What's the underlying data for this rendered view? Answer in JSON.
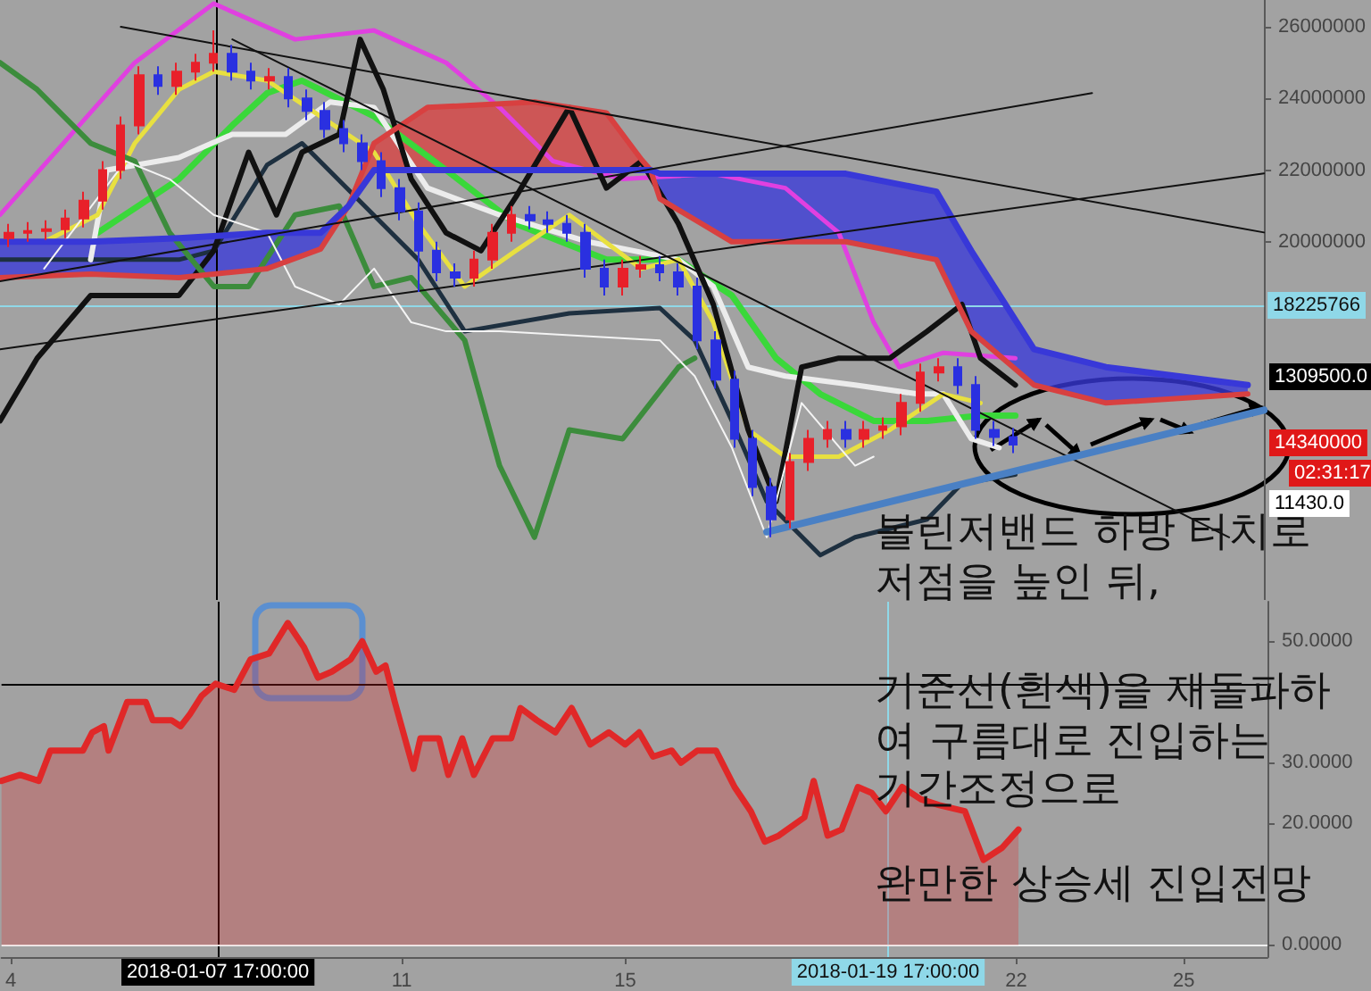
{
  "chart_data": [
    {
      "type": "candlestick",
      "x": [
        "2018-01-04T00:00",
        "2018-01-04T08:00",
        "2018-01-04T16:00",
        "2018-01-05T00:00",
        "2018-01-05T08:00",
        "2018-01-05T16:00",
        "2018-01-06T00:00",
        "2018-01-06T08:00",
        "2018-01-06T16:00",
        "2018-01-07T00:00",
        "2018-01-07T08:00",
        "2018-01-07T16:00",
        "2018-01-08T00:00",
        "2018-01-08T08:00",
        "2018-01-08T16:00",
        "2018-01-09T00:00",
        "2018-01-09T08:00",
        "2018-01-09T16:00",
        "2018-01-10T00:00",
        "2018-01-10T08:00",
        "2018-01-10T16:00",
        "2018-01-11T00:00",
        "2018-01-11T08:00",
        "2018-01-11T16:00",
        "2018-01-12T00:00",
        "2018-01-12T08:00",
        "2018-01-12T16:00",
        "2018-01-13T00:00",
        "2018-01-13T08:00",
        "2018-01-13T16:00",
        "2018-01-14T00:00",
        "2018-01-14T08:00",
        "2018-01-14T16:00",
        "2018-01-15T00:00",
        "2018-01-15T08:00",
        "2018-01-15T16:00",
        "2018-01-16T00:00",
        "2018-01-16T08:00",
        "2018-01-16T16:00",
        "2018-01-17T00:00",
        "2018-01-17T08:00",
        "2018-01-17T16:00",
        "2018-01-18T00:00",
        "2018-01-18T08:00",
        "2018-01-18T16:00",
        "2018-01-19T00:00",
        "2018-01-19T08:00",
        "2018-01-19T16:00",
        "2018-01-20T00:00",
        "2018-01-20T08:00",
        "2018-01-20T16:00",
        "2018-01-21T00:00",
        "2018-01-21T08:00",
        "2018-01-21T16:00",
        "2018-01-22T00:00"
      ],
      "ohlc": [
        [
          20100000,
          20500000,
          19850000,
          20250000
        ],
        [
          20250000,
          20550000,
          20000000,
          20300000
        ],
        [
          20300000,
          20600000,
          20050000,
          20350000
        ],
        [
          20350000,
          20900000,
          20100000,
          20650000
        ],
        [
          20650000,
          21400000,
          20400000,
          21150000
        ],
        [
          21150000,
          22250000,
          20900000,
          22000000
        ],
        [
          22000000,
          23500000,
          21750000,
          23250000
        ],
        [
          23250000,
          24900000,
          23000000,
          24650000
        ],
        [
          24650000,
          24900000,
          24100000,
          24350000
        ],
        [
          24350000,
          25000000,
          24100000,
          24750000
        ],
        [
          24750000,
          25250000,
          24500000,
          25000000
        ],
        [
          25000000,
          25900000,
          24750000,
          25250000
        ],
        [
          25250000,
          25500000,
          24500000,
          24750000
        ],
        [
          24750000,
          25000000,
          24250000,
          24500000
        ],
        [
          24500000,
          24850000,
          24250000,
          24600000
        ],
        [
          24600000,
          24850000,
          23750000,
          24000000
        ],
        [
          24000000,
          24250000,
          23400000,
          23650000
        ],
        [
          23650000,
          23900000,
          22900000,
          23150000
        ],
        [
          23150000,
          23400000,
          22500000,
          22750000
        ],
        [
          22750000,
          23000000,
          22000000,
          22250000
        ],
        [
          22250000,
          22500000,
          21250000,
          21500000
        ],
        [
          21500000,
          21750000,
          20600000,
          20850000
        ],
        [
          20850000,
          21100000,
          18600000,
          19750000
        ],
        [
          19750000,
          20000000,
          18900000,
          19150000
        ],
        [
          19150000,
          19400000,
          18750000,
          19000000
        ],
        [
          19000000,
          19750000,
          18750000,
          19500000
        ],
        [
          19500000,
          20500000,
          19250000,
          20250000
        ],
        [
          20250000,
          21000000,
          20000000,
          20750000
        ],
        [
          20750000,
          21000000,
          20350000,
          20600000
        ],
        [
          20600000,
          20850000,
          20250000,
          20500000
        ],
        [
          20500000,
          20750000,
          20000000,
          20250000
        ],
        [
          20250000,
          20500000,
          19000000,
          19250000
        ],
        [
          19250000,
          19500000,
          18500000,
          18750000
        ],
        [
          18750000,
          19500000,
          18500000,
          19250000
        ],
        [
          19250000,
          19600000,
          19000000,
          19350000
        ],
        [
          19350000,
          19600000,
          18900000,
          19150000
        ],
        [
          19150000,
          19400000,
          18500000,
          18750000
        ],
        [
          18750000,
          19000000,
          17000000,
          17250000
        ],
        [
          17250000,
          17500000,
          15900000,
          16150000
        ],
        [
          16150000,
          16400000,
          14250000,
          14500000
        ],
        [
          14500000,
          14750000,
          12900000,
          13150000
        ],
        [
          13150000,
          13400000,
          11750000,
          12250000
        ],
        [
          12250000,
          14100000,
          12000000,
          13850000
        ],
        [
          13850000,
          14750000,
          13600000,
          14500000
        ],
        [
          14500000,
          15000000,
          14250000,
          14750000
        ],
        [
          14750000,
          15000000,
          14250000,
          14500000
        ],
        [
          14500000,
          15000000,
          14250000,
          14750000
        ],
        [
          14750000,
          15100000,
          14500000,
          14850000
        ],
        [
          14850000,
          15750000,
          14600000,
          15500000
        ],
        [
          15500000,
          16600000,
          15250000,
          16350000
        ],
        [
          16350000,
          16750000,
          16100000,
          16500000
        ],
        [
          16500000,
          16750000,
          15750000,
          16000000
        ],
        [
          16000000,
          16250000,
          14500000,
          14750000
        ],
        [
          14750000,
          15000000,
          14300000,
          14550000
        ],
        [
          14550000,
          14800000,
          14100000,
          14340000
        ]
      ],
      "colors": [
        "#e8202a",
        "#e8202a",
        "#e8202a",
        "#e8202a",
        "#e8202a",
        "#e8202a",
        "#e8202a",
        "#e8202a",
        "#2a30e0",
        "#e8202a",
        "#e8202a",
        "#e8202a",
        "#2a30e0",
        "#2a30e0",
        "#e8202a",
        "#2a30e0",
        "#2a30e0",
        "#2a30e0",
        "#2a30e0",
        "#2a30e0",
        "#2a30e0",
        "#2a30e0",
        "#2a30e0",
        "#2a30e0",
        "#2a30e0",
        "#e8202a",
        "#e8202a",
        "#e8202a",
        "#2a30e0",
        "#2a30e0",
        "#2a30e0",
        "#2a30e0",
        "#2a30e0",
        "#e8202a",
        "#e8202a",
        "#2a30e0",
        "#2a30e0",
        "#2a30e0",
        "#2a30e0",
        "#2a30e0",
        "#2a30e0",
        "#2a30e0",
        "#e8202a",
        "#e8202a",
        "#e8202a",
        "#2a30e0",
        "#e8202a",
        "#e8202a",
        "#e8202a",
        "#e8202a",
        "#e8202a",
        "#2a30e0",
        "#2a30e0",
        "#2a30e0",
        "#2a30e0"
      ],
      "series": [
        {
          "type": "line",
          "color": "#e040e0",
          "x": [
            "2018-01-03T20:00",
            "2018-01-06T06:00",
            "2018-01-07T16:00",
            "2018-01-09T03:00",
            "2018-01-10T13:00",
            "2018-01-11T20:00",
            "2018-01-12T19:00",
            "2018-01-13T18:00",
            "2018-01-15T00:00",
            "2018-01-16T15:00",
            "2018-01-17T22:00",
            "2018-01-18T21:00",
            "2018-01-19T12:00",
            "2018-01-19T23:00",
            "2018-01-20T18:00",
            "2018-01-22T01:00"
          ],
          "values": [
            20750000,
            25000000,
            26650000,
            25650000,
            25900000,
            25000000,
            23750000,
            22250000,
            21750000,
            21900000,
            21500000,
            20250000,
            17750000,
            16500000,
            16900000,
            16750000
          ]
        },
        {
          "type": "line",
          "color": "#1e3040",
          "x": [
            "2018-01-03T20:00",
            "2018-01-05T11:00",
            "2018-01-07T01:00",
            "2018-01-07T16:00",
            "2018-01-08T15:00",
            "2018-01-09T06:00",
            "2018-01-11T08:00",
            "2018-01-12T04:00",
            "2018-01-14T01:00",
            "2018-01-15T16:00",
            "2018-01-16T07:00",
            "2018-01-16T23:00",
            "2018-01-17T14:00",
            "2018-01-18T13:00",
            "2018-01-19T04:00",
            "2018-01-20T11:00",
            "2018-01-21T02:00",
            "2018-01-22T01:00"
          ],
          "values": [
            19500000,
            19500000,
            19500000,
            19750000,
            22150000,
            22750000,
            19500000,
            17500000,
            18000000,
            18150000,
            17250000,
            15000000,
            12750000,
            11250000,
            11750000,
            12250000,
            13250000,
            13500000
          ]
        },
        {
          "type": "line",
          "color": "#3ad83a",
          "x": [
            "2018-01-05T14:00",
            "2018-01-07T01:00",
            "2018-01-08T00:00",
            "2018-01-08T15:00",
            "2018-01-09T06:00",
            "2018-01-10T13:00",
            "2018-01-11T20:00",
            "2018-01-13T02:00",
            "2018-01-14T17:00",
            "2018-01-16T00:00",
            "2018-01-16T23:00",
            "2018-01-17T18:00",
            "2018-01-18T13:00",
            "2018-01-19T12:00",
            "2018-01-20T11:00",
            "2018-01-21T10:00",
            "2018-01-22T01:00"
          ],
          "values": [
            20250000,
            21750000,
            23250000,
            24150000,
            24500000,
            23500000,
            22000000,
            20500000,
            19500000,
            19500000,
            18500000,
            16750000,
            15750000,
            15000000,
            15000000,
            15150000,
            15150000
          ]
        },
        {
          "type": "line",
          "color": "#ececec",
          "x": [
            "2018-01-05T11:00",
            "2018-01-05T18:00",
            "2018-01-07T01:00",
            "2018-01-08T00:00",
            "2018-01-08T23:00",
            "2018-01-09T18:00",
            "2018-01-10T13:00",
            "2018-01-11T12:00",
            "2018-01-12T19:00",
            "2018-01-14T09:00",
            "2018-01-16T00:00",
            "2018-01-16T15:00",
            "2018-01-17T06:00",
            "2018-01-17T22:00",
            "2018-01-19T04:00",
            "2018-01-20T07:00",
            "2018-01-20T18:00",
            "2018-01-21T06:00",
            "2018-01-21T18:00"
          ],
          "values": [
            19500000,
            22000000,
            22350000,
            23000000,
            23000000,
            23900000,
            23750000,
            21500000,
            20750000,
            20000000,
            19500000,
            18750000,
            16500000,
            16250000,
            16000000,
            15750000,
            15750000,
            14500000,
            14250000
          ]
        },
        {
          "type": "line",
          "color": "#e8e040",
          "x": [
            "2018-01-04T15:00",
            "2018-01-05T14:00",
            "2018-01-06T06:00",
            "2018-01-07T01:00",
            "2018-01-07T16:00",
            "2018-01-08T15:00",
            "2018-01-09T14:00",
            "2018-01-10T13:00",
            "2018-01-11T08:00",
            "2018-01-12T04:00",
            "2018-01-13T02:00",
            "2018-01-14T01:00",
            "2018-01-15T08:00",
            "2018-01-16T00:00",
            "2018-01-16T15:00",
            "2018-01-17T06:00",
            "2018-01-17T22:00",
            "2018-01-18T21:00",
            "2018-01-19T19:00",
            "2018-01-20T18:00",
            "2018-01-21T10:00"
          ],
          "values": [
            20000000,
            20750000,
            22750000,
            24250000,
            24750000,
            24500000,
            23500000,
            22500000,
            20500000,
            18750000,
            19750000,
            20750000,
            19250000,
            19500000,
            17750000,
            14750000,
            14000000,
            14000000,
            14750000,
            15750000,
            15500000
          ]
        },
        {
          "type": "line",
          "color": "#111111",
          "x": [
            "2018-01-03T20:00",
            "2018-01-04T12:00",
            "2018-01-05T11:00",
            "2018-01-07T01:00",
            "2018-01-07T16:00",
            "2018-01-08T07:00",
            "2018-01-08T19:00",
            "2018-01-09T06:00",
            "2018-01-09T22:00",
            "2018-01-10T07:00",
            "2018-01-10T17:00",
            "2018-01-11T05:00",
            "2018-01-11T20:00",
            "2018-01-12T11:00",
            "2018-01-13T02:00",
            "2018-01-14T01:00",
            "2018-01-14T17:00",
            "2018-01-15T08:00",
            "2018-01-16T00:00",
            "2018-01-16T15:00",
            "2018-01-17T06:00",
            "2018-01-17T18:00",
            "2018-01-18T05:00",
            "2018-01-18T21:00",
            "2018-01-19T19:00",
            "2018-01-20T11:00",
            "2018-01-21T02:00",
            "2018-01-21T10:00",
            "2018-01-22T01:00"
          ],
          "values": [
            15000000,
            16750000,
            18500000,
            18500000,
            19750000,
            22500000,
            20750000,
            22500000,
            23000000,
            25650000,
            24250000,
            21750000,
            20250000,
            19750000,
            21250000,
            23750000,
            21500000,
            22250000,
            20500000,
            18250000,
            14750000,
            12750000,
            16500000,
            16750000,
            16750000,
            17500000,
            18250000,
            16750000,
            16000000
          ]
        },
        {
          "type": "line",
          "color": "#3c8c3c",
          "x": [
            "2018-01-03T20:00",
            "2018-01-04T12:00",
            "2018-01-05T11:00",
            "2018-01-06T06:00",
            "2018-01-06T21:00",
            "2018-01-07T16:00",
            "2018-01-08T07:00",
            "2018-01-09T03:00",
            "2018-01-09T22:00",
            "2018-01-10T13:00",
            "2018-01-11T05:00",
            "2018-01-12T04:00",
            "2018-01-12T19:00",
            "2018-01-13T10:00",
            "2018-01-14T01:00",
            "2018-01-15T00:00",
            "2018-01-16T00:00",
            "2018-01-16T07:00"
          ],
          "values": [
            25000000,
            24250000,
            22750000,
            22250000,
            20250000,
            18750000,
            18750000,
            20750000,
            21000000,
            18750000,
            19000000,
            17250000,
            13750000,
            11750000,
            14750000,
            14500000,
            16500000,
            16750000
          ]
        },
        {
          "type": "line",
          "color": "#f4f4f4",
          "x": [
            "2018-01-04T15:00",
            "2018-01-06T02:00",
            "2018-01-06T21:00",
            "2018-01-07T16:00",
            "2018-01-08T15:00",
            "2018-01-09T03:00",
            "2018-01-09T22:00",
            "2018-01-10T13:00",
            "2018-01-11T05:00",
            "2018-01-11T20:00",
            "2018-01-12T19:00",
            "2018-01-15T16:00",
            "2018-01-16T07:00",
            "2018-01-16T23:00",
            "2018-01-17T14:00",
            "2018-01-18T05:00",
            "2018-01-19T04:00",
            "2018-01-19T12:00"
          ],
          "values": [
            19250000,
            22250000,
            21750000,
            20750000,
            20250000,
            18750000,
            18250000,
            19250000,
            17750000,
            17500000,
            17500000,
            17250000,
            16250000,
            14250000,
            11750000,
            15500000,
            13750000,
            14000000
          ]
        },
        {
          "type": "line",
          "color": "#d84040",
          "x": [
            "2018-01-03T20:00",
            "2018-01-05T11:00",
            "2018-01-07T01:00",
            "2018-01-08T15:00",
            "2018-01-09T14:00",
            "2018-01-10T02:00",
            "2018-01-10T13:00",
            "2018-01-11T12:00",
            "2018-01-13T10:00",
            "2018-01-14T17:00",
            "2018-01-15T08:00",
            "2018-01-15T12:00",
            "2018-01-15T16:00",
            "2018-01-16T23:00",
            "2018-01-19T00:00",
            "2018-01-20T15:00",
            "2018-01-21T06:00",
            "2018-01-22T09:00",
            "2018-01-23T16:00",
            "2018-01-26T05:00"
          ],
          "values": [
            19000000,
            19100000,
            19000000,
            19250000,
            19800000,
            21000000,
            22750000,
            23750000,
            23900000,
            23600000,
            22300000,
            22000000,
            21200000,
            20000000,
            20000000,
            19500000,
            17500000,
            16000000,
            15500000,
            15750000
          ],
          "lower": [
            null,
            null,
            null,
            null,
            null,
            21000000,
            22000000,
            22000000,
            22000000,
            22000000,
            22000000,
            22000000,
            null,
            null,
            null,
            null,
            null,
            null,
            null,
            null
          ],
          "upper": [
            null,
            null,
            null,
            null,
            null,
            21000000,
            22750000,
            23750000,
            23900000,
            23600000,
            22300000,
            22000000,
            null,
            null,
            null,
            null,
            null,
            null,
            null,
            null
          ]
        },
        {
          "type": "line",
          "color": "#3838d8",
          "x": [
            "2018-01-03T20:00",
            "2018-01-05T11:00",
            "2018-01-07T01:00",
            "2018-01-08T15:00",
            "2018-01-09T14:00",
            "2018-01-10T02:00",
            "2018-01-10T13:00",
            "2018-01-11T12:00",
            "2018-01-13T10:00",
            "2018-01-14T17:00",
            "2018-01-15T08:00",
            "2018-01-15T12:00",
            "2018-01-15T16:00",
            "2018-01-16T23:00",
            "2018-01-19T00:00",
            "2018-01-20T15:00",
            "2018-01-21T06:00",
            "2018-01-22T09:00",
            "2018-01-23T16:00",
            "2018-01-26T05:00"
          ],
          "values": [
            20000000,
            20000000,
            20100000,
            20250000,
            20250000,
            21000000,
            22000000,
            22000000,
            22000000,
            22000000,
            22000000,
            22000000,
            21900000,
            21900000,
            21900000,
            21400000,
            19750000,
            17000000,
            16500000,
            16000000
          ],
          "lower": [
            19000000,
            19100000,
            19000000,
            19250000,
            19800000,
            21000000,
            null,
            null,
            null,
            null,
            null,
            22000000,
            21200000,
            20000000,
            20000000,
            19500000,
            17500000,
            16000000,
            15500000,
            15750000
          ],
          "upper": [
            20000000,
            20000000,
            20100000,
            20250000,
            20250000,
            21000000,
            null,
            null,
            null,
            null,
            null,
            22000000,
            21900000,
            21900000,
            21900000,
            21400000,
            19750000,
            17000000,
            16500000,
            16000000
          ]
        },
        {
          "type": "line",
          "color": "#111111",
          "x": [
            "2018-01-06T00:00",
            "2018-01-26T12:00"
          ],
          "values": [
            26000000,
            20260000
          ]
        },
        {
          "type": "line",
          "color": "#111111",
          "x": [
            "2018-01-08T00:00",
            "2018-01-25T21:00"
          ],
          "values": [
            25650000,
            11750000
          ]
        },
        {
          "type": "line",
          "color": "#111111",
          "x": [
            "2018-01-03T20:00",
            "2018-01-26T12:00"
          ],
          "values": [
            17000000,
            21910000
          ]
        },
        {
          "type": "line",
          "color": "#111111",
          "x": [
            "2018-01-03T20:00",
            "2018-01-23T10:00"
          ],
          "values": [
            18900000,
            24150000
          ]
        },
        {
          "type": "line",
          "color": "#4a80c4",
          "x": [
            "2018-01-17T14:00",
            "2018-01-26T12:00"
          ],
          "values": [
            11900000,
            15300000
          ]
        }
      ],
      "xlim": [
        "2018-01-03T20:00",
        "2018-01-26T12:00"
      ],
      "ylim": [
        10000000,
        26750000
      ],
      "yticks": [
        20000000,
        22000000,
        24000000,
        26000000
      ],
      "tick_labels": "y",
      "ref_lines": [
        {
          "axis": "y",
          "value": 18225766,
          "label": "18225766",
          "color": "#8fd8e8"
        },
        {
          "axis": "x",
          "value": "2018-01-07T17:00",
          "color": "#000000"
        }
      ],
      "annotations": [
        "볼린저밴드 하방 터치로",
        "저점을 높인 뒤,",
        "1309500.0",
        "14340000",
        "02:31:17",
        "11430.0"
      ]
    },
    {
      "type": "area",
      "color": "#e02828",
      "x": [
        "2018-01-03T20:00",
        "2018-01-04T04:00",
        "2018-01-04T12:00",
        "2018-01-04T17:00",
        "2018-01-05T01:00",
        "2018-01-05T07:00",
        "2018-01-05T11:00",
        "2018-01-05T16:00",
        "2018-01-05T18:00",
        "2018-01-06T02:00",
        "2018-01-06T10:00",
        "2018-01-06T13:00",
        "2018-01-06T21:00",
        "2018-01-07T01:00",
        "2018-01-07T05:00",
        "2018-01-07T10:00",
        "2018-01-07T16:00",
        "2018-01-08T00:00",
        "2018-01-08T07:00",
        "2018-01-08T15:00",
        "2018-01-08T23:00",
        "2018-01-09T06:00",
        "2018-01-09T12:00",
        "2018-01-09T18:00",
        "2018-01-10T02:00",
        "2018-01-10T07:00",
        "2018-01-10T13:00",
        "2018-01-10T17:00",
        "2018-01-10T21:00",
        "2018-01-11T05:00",
        "2018-01-11T08:00",
        "2018-01-11T16:00",
        "2018-01-11T20:00",
        "2018-01-12T02:00",
        "2018-01-12T07:00",
        "2018-01-12T15:00",
        "2018-01-12T23:00",
        "2018-01-13T03:00",
        "2018-01-13T10:00",
        "2018-01-13T18:00",
        "2018-01-14T01:00",
        "2018-01-14T09:00",
        "2018-01-14T17:00",
        "2018-01-15T00:00",
        "2018-01-15T06:00",
        "2018-01-15T12:00",
        "2018-01-15T20:00",
        "2018-01-16T00:00",
        "2018-01-16T07:00",
        "2018-01-16T15:00",
        "2018-01-16T23:00",
        "2018-01-17T06:00",
        "2018-01-17T12:00",
        "2018-01-17T18:00",
        "2018-01-18T05:00",
        "2018-01-18T09:00",
        "2018-01-18T15:00",
        "2018-01-18T21:00",
        "2018-01-19T04:00",
        "2018-01-19T10:00",
        "2018-01-19T16:00",
        "2018-01-19T23:00",
        "2018-01-20T07:00",
        "2018-01-20T15:00",
        "2018-01-21T02:00",
        "2018-01-21T10:00",
        "2018-01-21T18:00",
        "2018-01-22T01:00"
      ],
      "values": [
        27,
        28,
        27,
        32,
        32,
        32,
        35,
        36,
        32,
        40,
        40,
        37,
        37,
        36,
        38,
        41,
        43,
        42,
        47,
        48,
        53,
        49,
        44,
        45,
        47,
        50,
        45,
        46,
        40,
        29,
        34,
        34,
        28,
        34,
        28,
        34,
        34,
        39,
        37,
        35,
        39,
        33,
        35,
        33,
        35,
        31,
        32,
        30,
        32,
        32,
        26,
        22,
        17,
        18,
        21,
        27,
        18,
        19,
        26,
        25,
        22,
        26,
        24,
        23,
        22,
        14,
        16,
        19
      ],
      "xlim": [
        "2018-01-03T20:00",
        "2018-01-26T12:00"
      ],
      "ylim": [
        -2,
        56.5
      ],
      "xticks": [
        {
          "value": "2018-01-04",
          "label": "4"
        },
        {
          "value": "2018-01-11",
          "label": "11"
        },
        {
          "value": "2018-01-15",
          "label": "15"
        },
        {
          "value": "2018-01-22",
          "label": "22"
        },
        {
          "value": "2018-01-25",
          "label": "25"
        }
      ],
      "yticks": [
        {
          "value": 0,
          "label": "0.0000"
        },
        {
          "value": 20,
          "label": "20.0000"
        },
        {
          "value": 30,
          "label": "30.0000"
        },
        {
          "value": 50,
          "label": "50.0000"
        }
      ],
      "ref_lines": [
        {
          "axis": "x",
          "value": "2018-01-07T17:00",
          "label": "2018-01-07 17:00:00",
          "color": "#000000"
        },
        {
          "axis": "x",
          "value": "2018-01-19T17:00",
          "label": "2018-01-19 17:00:00",
          "color": "#8fd8e8"
        },
        {
          "axis": "y",
          "value": 43,
          "color": "#000000"
        },
        {
          "axis": "y",
          "value": 0,
          "color": "#f0f0f0"
        }
      ],
      "annotations": [
        "기준선(흰색)을 재돌파하",
        "여 구름대로 진입하는",
        "기간조정으로",
        "완만한 상승세 진입전망"
      ]
    }
  ]
}
